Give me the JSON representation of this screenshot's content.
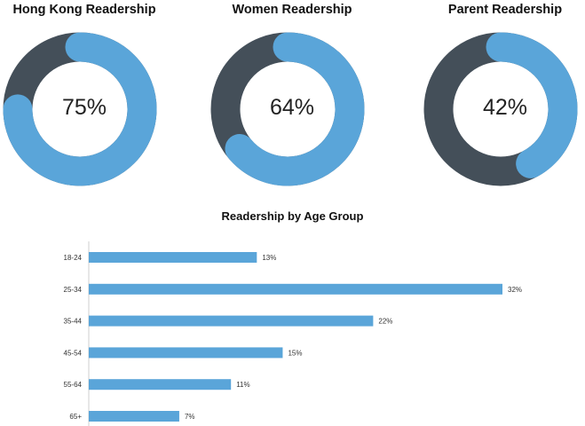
{
  "colors": {
    "accent": "#5aa5d9",
    "track": "#444f59"
  },
  "chart_data": [
    {
      "type": "pie",
      "title": "Hong Kong Readership",
      "value": 75,
      "label": "75%"
    },
    {
      "type": "pie",
      "title": "Women Readership",
      "value": 64,
      "label": "64%"
    },
    {
      "type": "pie",
      "title": "Parent Readership",
      "value": 42,
      "label": "42%"
    },
    {
      "type": "bar",
      "orientation": "horizontal",
      "title": "Readership by Age Group",
      "categories": [
        "18-24",
        "25-34",
        "35-44",
        "45-54",
        "55-64",
        "65+"
      ],
      "values": [
        13,
        32,
        22,
        15,
        11,
        7
      ],
      "labels": [
        "13%",
        "32%",
        "22%",
        "15%",
        "11%",
        "7%"
      ],
      "xlim": [
        0,
        32
      ]
    }
  ]
}
